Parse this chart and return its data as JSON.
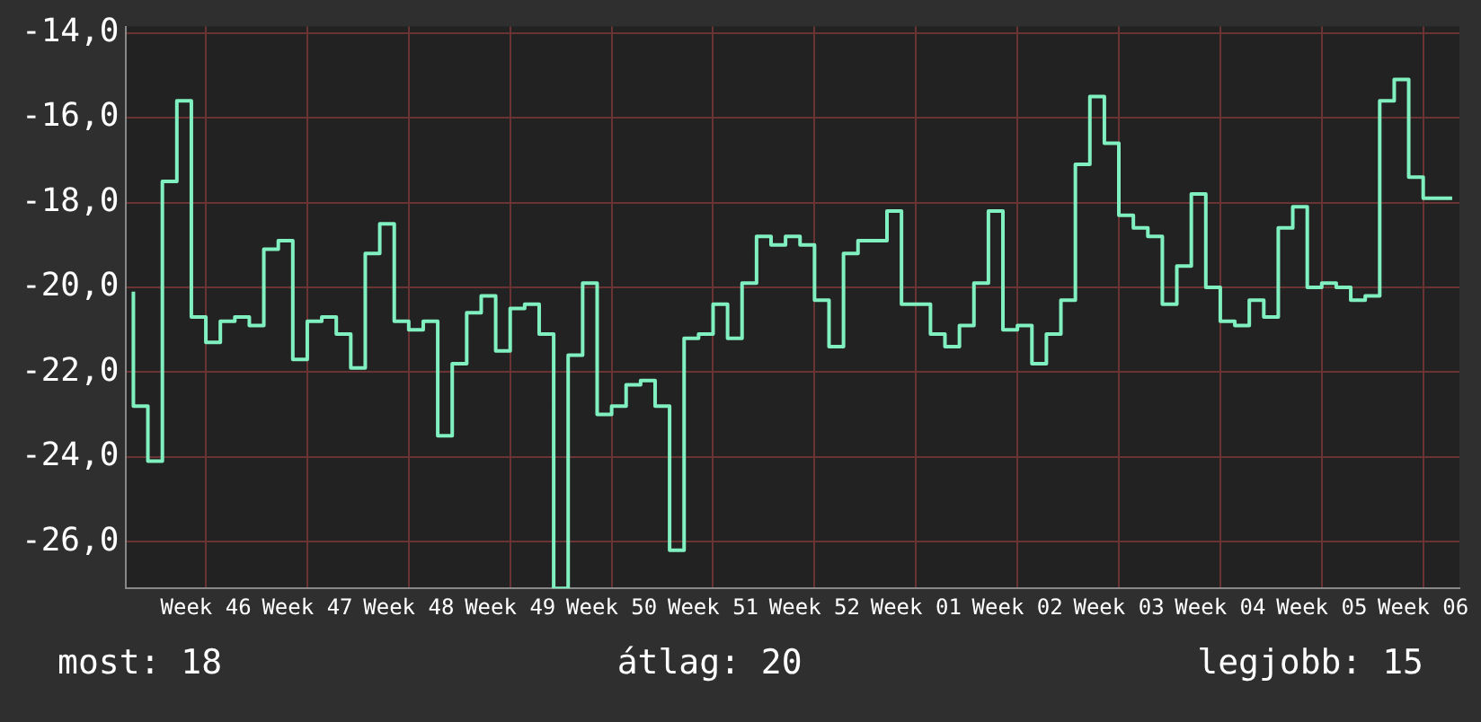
{
  "chart_data": {
    "type": "step",
    "categories": [
      null,
      null,
      null,
      null,
      null,
      "Week 46",
      null,
      null,
      null,
      null,
      null,
      null,
      "Week 47",
      null,
      null,
      null,
      null,
      null,
      null,
      "Week 48",
      null,
      null,
      null,
      null,
      null,
      null,
      "Week 49",
      null,
      null,
      null,
      null,
      null,
      null,
      "Week 50",
      null,
      null,
      null,
      null,
      null,
      null,
      "Week 51",
      null,
      null,
      null,
      null,
      null,
      null,
      "Week 52",
      null,
      null,
      null,
      null,
      null,
      null,
      "Week 01",
      null,
      null,
      null,
      null,
      null,
      null,
      "Week 02",
      null,
      null,
      null,
      null,
      null,
      null,
      "Week 03",
      null,
      null,
      null,
      null,
      null,
      null,
      "Week 04",
      null,
      null,
      null,
      null,
      null,
      null,
      "Week 05",
      null,
      null,
      null,
      null,
      null,
      null,
      "Week 06",
      null,
      null
    ],
    "series": [
      {
        "color": "#80f0c0",
        "values": [
          -20.1,
          -22.8,
          -24.1,
          -17.5,
          -15.6,
          -20.7,
          -21.3,
          -20.8,
          -20.7,
          -20.9,
          -19.1,
          -18.9,
          -21.7,
          -20.8,
          -20.7,
          -21.1,
          -21.9,
          -19.2,
          -18.5,
          -20.8,
          -21.0,
          -20.8,
          -23.5,
          -21.8,
          -20.6,
          -20.2,
          -21.5,
          -20.5,
          -20.4,
          -21.1,
          -27.1,
          -21.6,
          -19.9,
          -23.0,
          -22.8,
          -22.3,
          -22.2,
          -22.8,
          -26.2,
          -21.2,
          -21.1,
          -20.4,
          -21.2,
          -19.9,
          -18.8,
          -19.0,
          -18.8,
          -19.0,
          -20.3,
          -21.4,
          -19.2,
          -18.9,
          -18.9,
          -18.2,
          -20.4,
          -20.4,
          -21.1,
          -21.4,
          -20.9,
          -19.9,
          -18.2,
          -21.0,
          -20.9,
          -21.8,
          -21.1,
          -20.3,
          -17.1,
          -15.5,
          -16.6,
          -18.3,
          -18.6,
          -18.8,
          -20.4,
          -19.5,
          -17.8,
          -20.0,
          -20.8,
          -20.9,
          -20.3,
          -20.7,
          -18.6,
          -18.1,
          -20.0,
          -19.9,
          -20.0,
          -20.3,
          -20.2,
          -15.6,
          -15.1,
          -17.4,
          -17.9,
          -17.9
        ]
      }
    ],
    "ylim": [
      -27.1,
      -13.85
    ],
    "yticks": [
      {
        "value": -26,
        "label": "-26,0"
      },
      {
        "value": -24,
        "label": "-24,0"
      },
      {
        "value": -22,
        "label": "-22,0"
      },
      {
        "value": -20,
        "label": "-20,0"
      },
      {
        "value": -18,
        "label": "-18,0"
      },
      {
        "value": -16,
        "label": "-16,0"
      },
      {
        "value": -14,
        "label": "-14,0"
      }
    ],
    "grid": true,
    "annotations": [
      "most: 18",
      "átlag: 20",
      "legjobb: 15"
    ]
  }
}
